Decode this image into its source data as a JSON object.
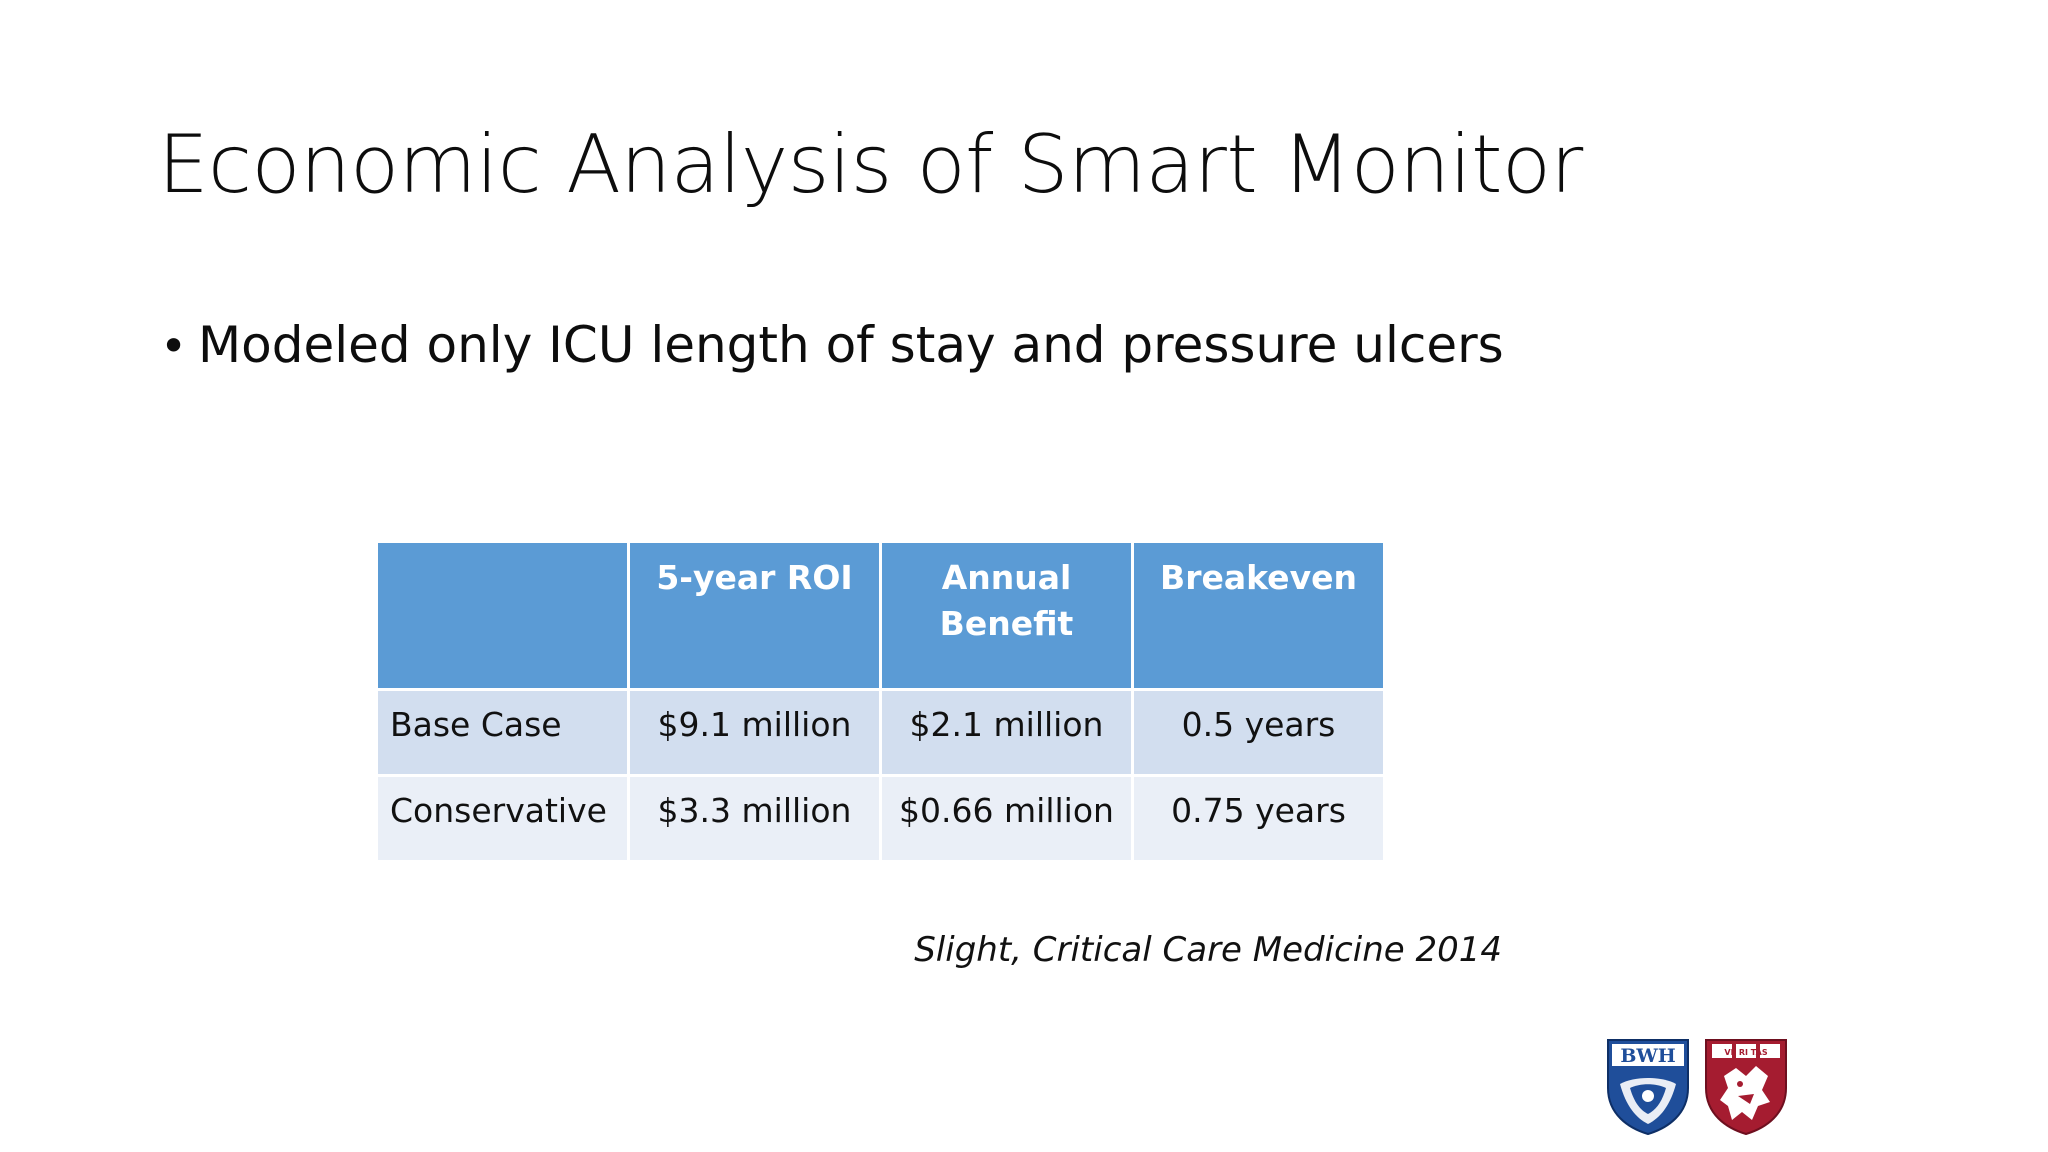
{
  "slide": {
    "title": "Economic Analysis of Smart Monitor",
    "bullet": "Modeled only ICU length of stay and pressure ulcers",
    "citation": "Slight, Critical Care Medicine 2014"
  },
  "table": {
    "headers": [
      "",
      "5-year ROI",
      "Annual Benefit",
      "Breakeven"
    ],
    "rows": [
      [
        "Base Case",
        "$9.1 million",
        "$2.1 million",
        "0.5 years"
      ],
      [
        "Conservative",
        "$3.3 million",
        "$0.66 million",
        "0.75 years"
      ]
    ]
  },
  "logos": {
    "bwh_text": "BWH",
    "harvard_text": "VE RI TAS"
  },
  "colors": {
    "header": "#5b9bd5",
    "row_odd": "#d2deef",
    "row_even": "#eaeff7",
    "bwh_blue": "#1f4e9a",
    "harvard_crimson": "#a51c30"
  }
}
